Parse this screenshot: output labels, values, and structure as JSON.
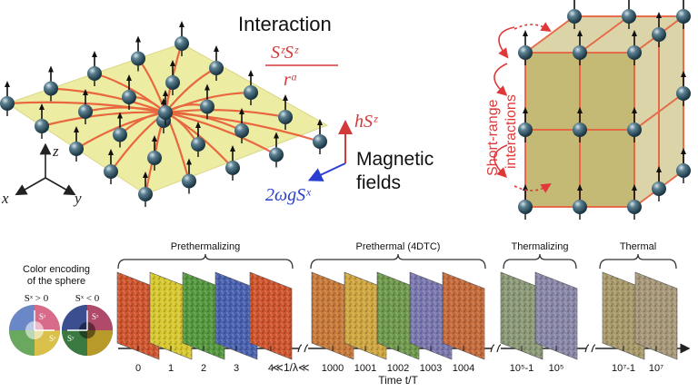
{
  "top_left": {
    "interaction_label": "Interaction",
    "formula_numerator": "SᶻSᶻ",
    "formula_denominator": "rᵅ",
    "field_z": "hSᶻ",
    "field_x": "2ωgSˣ",
    "fields_line1": "Magnetic",
    "fields_line2": "fields",
    "axis_z": "z",
    "axis_x": "x",
    "axis_y": "y"
  },
  "top_right": {
    "label_line1": "Short-range",
    "label_line2": "interactions"
  },
  "legend": {
    "line1": "Color encoding",
    "line2": "of the sphere",
    "left_cond": "Sˣ > 0",
    "right_cond": "Sˣ < 0",
    "sy": "Sʸ",
    "sz": "Sᶻ"
  },
  "timeline": {
    "phases": [
      "Prethermalizing",
      "Prethermal (4DTC)",
      "Thermalizing",
      "Thermal"
    ],
    "ticks": [
      "0",
      "1",
      "2",
      "3",
      "4",
      "1000",
      "1001",
      "1002",
      "1003",
      "1004",
      "10⁵-1",
      "10⁵",
      "10⁷-1",
      "10⁷"
    ],
    "inequality": "≪1/λ≪",
    "axis_label": "Time t/T",
    "panel_colors": [
      "#d0562f",
      "#d8c830",
      "#55983f",
      "#4a62b0",
      "#d0562f",
      "#c87a3a",
      "#cfa640",
      "#6f9a4e",
      "#7b78b0",
      "#c56b3c",
      "#8c9a78",
      "#8a88a8",
      "#a89a6a",
      "#a8987a"
    ]
  }
}
